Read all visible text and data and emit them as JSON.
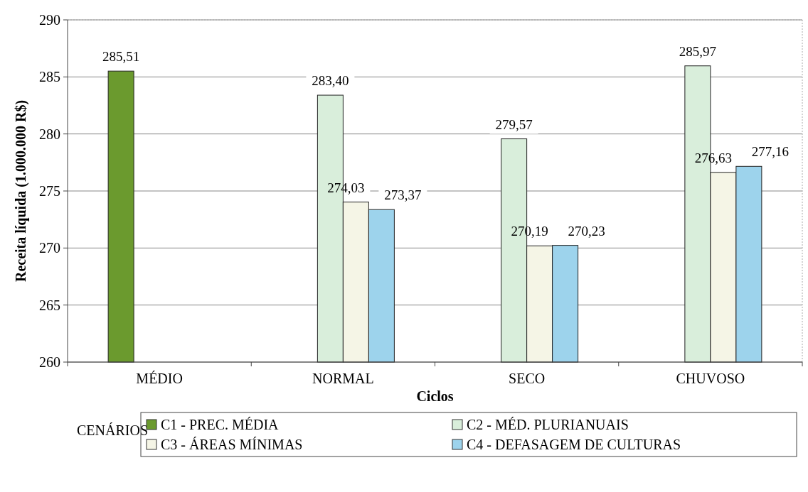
{
  "chart_data": {
    "type": "bar",
    "xlabel": "Ciclos",
    "ylabel": "Receita líquida (1.000.000 R$)",
    "legend_title": "CENÁRIOS",
    "categories": [
      "MÉDIO",
      "NORMAL",
      "SECO",
      "CHUVOSO"
    ],
    "series": [
      {
        "name": "C1 - PREC. MÉDIA",
        "color": "#6b9a2e",
        "values": [
          285.51,
          null,
          null,
          null
        ],
        "value_labels": [
          "285,51",
          null,
          null,
          null
        ]
      },
      {
        "name": "C2 - MÉD. PLURIANUAIS",
        "color": "#d9eedb",
        "values": [
          null,
          283.4,
          279.57,
          285.97
        ],
        "value_labels": [
          null,
          "283,40",
          "279,57",
          "285,97"
        ]
      },
      {
        "name": "C3 - ÁREAS MÍNIMAS",
        "color": "#f5f5e6",
        "values": [
          null,
          274.03,
          270.19,
          276.63
        ],
        "value_labels": [
          null,
          "274,03",
          "270,19",
          "276,63"
        ]
      },
      {
        "name": "C4 - DEFASAGEM DE CULTURAS",
        "color": "#9dd3ec",
        "values": [
          null,
          273.37,
          270.23,
          277.16
        ],
        "value_labels": [
          null,
          "273,37",
          "270,23",
          "277,16"
        ]
      }
    ],
    "ylim": [
      260,
      290
    ],
    "yticks": [
      260,
      265,
      270,
      275,
      280,
      285,
      290
    ],
    "grid": "y",
    "legend": "bottom"
  }
}
